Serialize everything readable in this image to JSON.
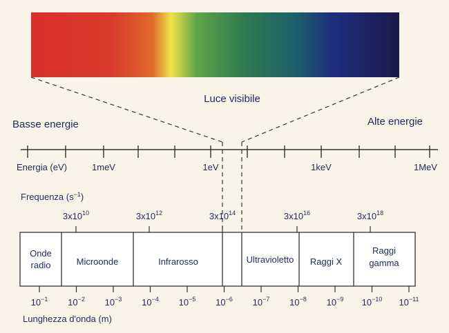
{
  "spectrum_band": {
    "label": "Luce visibile",
    "gradient_colors": [
      "#d8302c",
      "#d83a2c",
      "#e06a2c",
      "#f2e24a",
      "#5ea548",
      "#2f7a50",
      "#1d5f6a",
      "#1e2d7e",
      "#1a1a4a"
    ]
  },
  "energy_labels": {
    "low": "Basse energie",
    "high": "Alte energie"
  },
  "energy_axis": {
    "title": "Energia (eV)",
    "ticks": [
      "1meV",
      "1eV",
      "1keV",
      "1MeV"
    ]
  },
  "frequency_axis": {
    "title_base": "Frequenza (s",
    "title_exp": "−1",
    "title_close": ")",
    "ticks": [
      {
        "mant": "3x10",
        "exp": "10"
      },
      {
        "mant": "3x10",
        "exp": "12"
      },
      {
        "mant": "3x10",
        "exp": "14"
      },
      {
        "mant": "3x10",
        "exp": "16"
      },
      {
        "mant": "3x10",
        "exp": "18"
      }
    ]
  },
  "regions": [
    {
      "lines": [
        "Onde",
        "radio"
      ]
    },
    {
      "lines": [
        "Microonde"
      ]
    },
    {
      "lines": [
        "Infrarosso"
      ]
    },
    {
      "lines": [
        ""
      ]
    },
    {
      "lines": [
        "Ultravioletto"
      ]
    },
    {
      "lines": [
        "Raggi X"
      ]
    },
    {
      "lines": [
        "Raggi",
        "gamma"
      ]
    }
  ],
  "wavelength_axis": {
    "title": "Lunghezza d'onda (m)",
    "ticks": [
      {
        "base": "10",
        "exp": "−1"
      },
      {
        "base": "10",
        "exp": "−2"
      },
      {
        "base": "10",
        "exp": "−3"
      },
      {
        "base": "10",
        "exp": "−4"
      },
      {
        "base": "10",
        "exp": "−5"
      },
      {
        "base": "10",
        "exp": "−6"
      },
      {
        "base": "10",
        "exp": "−7"
      },
      {
        "base": "10",
        "exp": "−8"
      },
      {
        "base": "10",
        "exp": "−9"
      },
      {
        "base": "10",
        "exp": "−10"
      },
      {
        "base": "10",
        "exp": "−11"
      }
    ]
  }
}
